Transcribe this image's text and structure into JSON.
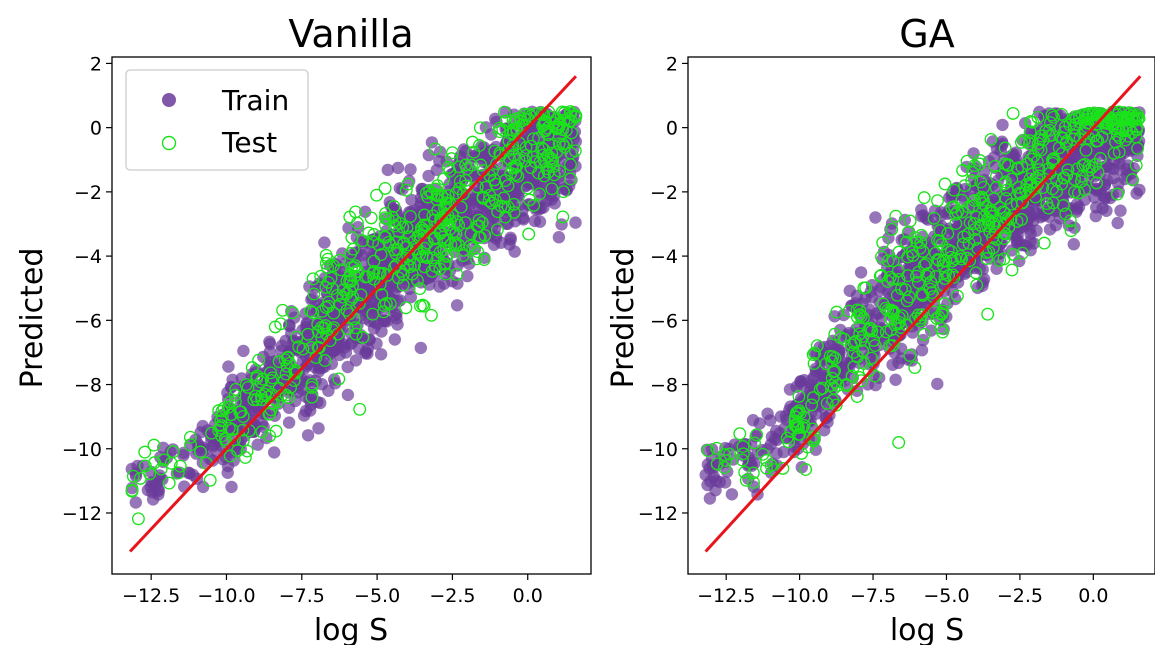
{
  "chart_data": [
    {
      "type": "scatter",
      "title": "Vanilla",
      "xlabel": "log S",
      "ylabel": "Predicted",
      "xlim": [
        -13.8,
        2.1
      ],
      "ylim": [
        -13.9,
        2.2
      ],
      "xticks": [
        -12.5,
        -10.0,
        -7.5,
        -5.0,
        -2.5,
        0.0
      ],
      "xtick_labels": [
        "−12.5",
        "−10.0",
        "−7.5",
        "−5.0",
        "−2.5",
        "0.0"
      ],
      "yticks": [
        2,
        0,
        -2,
        -4,
        -6,
        -8,
        -10,
        -12
      ],
      "ytick_labels": [
        "2",
        "0",
        "−2",
        "−4",
        "−6",
        "−8",
        "−10",
        "−12"
      ],
      "legend": {
        "position": "upper-left",
        "entries": [
          "Train",
          "Test"
        ]
      },
      "reference_line": {
        "from": [
          -13.2,
          -13.2
        ],
        "to": [
          1.6,
          1.6
        ],
        "color": "#e8141b"
      },
      "series": [
        {
          "name": "Train",
          "marker": "filled-circle",
          "color": "#6a3a9a",
          "trend": [
            [
              -13.2,
              -11.2
            ],
            [
              -11,
              -10.3
            ],
            [
              -10,
              -9.3
            ],
            [
              -8,
              -7.6
            ],
            [
              -6,
              -5.4
            ],
            [
              -4,
              -3.8
            ],
            [
              -2,
              -2.4
            ],
            [
              0,
              -1.2
            ],
            [
              1.6,
              -0.2
            ]
          ]
        },
        {
          "name": "Test",
          "marker": "open-circle",
          "color": "#1be31b",
          "trend": [
            [
              -13.2,
              -11.0
            ],
            [
              -11,
              -10.4
            ],
            [
              -10,
              -9.4
            ],
            [
              -8,
              -7.7
            ],
            [
              -6,
              -5.3
            ],
            [
              -4,
              -3.7
            ],
            [
              -2,
              -2.3
            ],
            [
              0,
              -1.0
            ],
            [
              1.6,
              -0.1
            ]
          ]
        }
      ]
    },
    {
      "type": "scatter",
      "title": "GA",
      "xlabel": "log S",
      "ylabel": "Predicted",
      "xlim": [
        -13.8,
        2.1
      ],
      "ylim": [
        -13.9,
        2.2
      ],
      "xticks": [
        -12.5,
        -10.0,
        -7.5,
        -5.0,
        -2.5,
        0.0
      ],
      "xtick_labels": [
        "−12.5",
        "−10.0",
        "−7.5",
        "−5.0",
        "−2.5",
        "0.0"
      ],
      "yticks": [
        2,
        0,
        -2,
        -4,
        -6,
        -8,
        -10,
        -12
      ],
      "ytick_labels": [
        "2",
        "0",
        "−2",
        "−4",
        "−6",
        "−8",
        "−10",
        "−12"
      ],
      "reference_line": {
        "from": [
          -13.2,
          -13.2
        ],
        "to": [
          1.6,
          1.6
        ],
        "color": "#e8141b"
      },
      "series": [
        {
          "name": "Train",
          "marker": "filled-circle",
          "color": "#6a3a9a",
          "trend": [
            [
              -13.2,
              -10.8
            ],
            [
              -11,
              -10.0
            ],
            [
              -10,
              -9.0
            ],
            [
              -8,
              -6.5
            ],
            [
              -6,
              -5.0
            ],
            [
              -4,
              -3.0
            ],
            [
              -2,
              -1.7
            ],
            [
              0,
              -0.4
            ],
            [
              1.6,
              0.3
            ]
          ]
        },
        {
          "name": "Test",
          "marker": "open-circle",
          "color": "#1be31b",
          "trend": [
            [
              -13.2,
              -10.6
            ],
            [
              -11,
              -10.1
            ],
            [
              -10,
              -9.1
            ],
            [
              -8,
              -6.6
            ],
            [
              -6,
              -4.9
            ],
            [
              -4,
              -2.9
            ],
            [
              -2,
              -1.6
            ],
            [
              0,
              -0.3
            ],
            [
              1.6,
              0.3
            ]
          ]
        }
      ]
    }
  ]
}
